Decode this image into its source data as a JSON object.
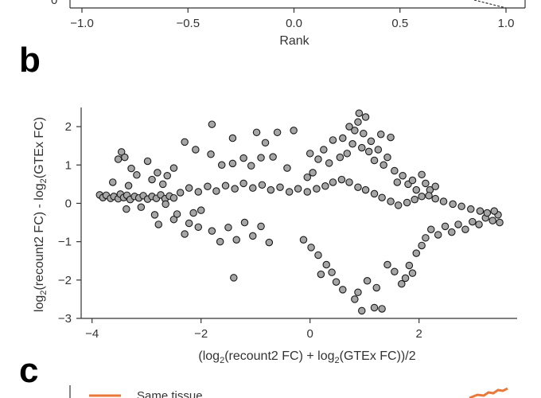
{
  "panels": {
    "a_fragment": {
      "xlabel": "Rank",
      "xticks": [
        "−1.0",
        "−0.5",
        "0.0",
        "0.5",
        "1.0"
      ],
      "ytick_partial": "0"
    },
    "b": {
      "label": "b"
    },
    "c_fragment": {
      "label": "c",
      "legend_text": "Same tissue",
      "orange": "#e8793a"
    }
  },
  "chart_data": {
    "type": "scatter",
    "title": "",
    "xlabel_parts": [
      "(log",
      "2",
      "(recount2 FC) + log",
      "2",
      "(GTEx FC))/2"
    ],
    "ylabel_parts": [
      "log",
      "2",
      "(recount2 FC) - log",
      "2",
      "(GTEx FC)"
    ],
    "xlim": [
      -4.2,
      3.8
    ],
    "ylim": [
      -3.0,
      2.5
    ],
    "xticks": [
      -4,
      -2,
      0,
      2
    ],
    "xtick_labels": [
      "−4",
      "−2",
      "0",
      "2"
    ],
    "yticks": [
      -3,
      -2,
      -1,
      0,
      1,
      2
    ],
    "ytick_labels": [
      "−3",
      "−2",
      "−1",
      "0",
      "1",
      "2"
    ],
    "grid": false,
    "marker_fill": "#a6a6a6",
    "marker_edge": "#1a1a1a",
    "points": [
      [
        -3.86,
        0.22
      ],
      [
        -3.8,
        0.15
      ],
      [
        -3.74,
        0.21
      ],
      [
        -3.66,
        0.13
      ],
      [
        -3.6,
        0.18
      ],
      [
        -3.52,
        0.12
      ],
      [
        -3.48,
        0.24
      ],
      [
        -3.42,
        0.15
      ],
      [
        -3.36,
        0.21
      ],
      [
        -3.3,
        0.1
      ],
      [
        -3.22,
        0.18
      ],
      [
        -3.14,
        0.14
      ],
      [
        -3.06,
        0.2
      ],
      [
        -2.98,
        0.11
      ],
      [
        -2.9,
        0.18
      ],
      [
        -2.82,
        0.13
      ],
      [
        -2.74,
        0.22
      ],
      [
        -2.66,
        0.12
      ],
      [
        -2.58,
        0.19
      ],
      [
        -2.5,
        0.14
      ],
      [
        -3.52,
        1.15
      ],
      [
        -3.46,
        1.34
      ],
      [
        -3.4,
        1.2
      ],
      [
        -3.28,
        0.91
      ],
      [
        -2.98,
        1.1
      ],
      [
        -2.8,
        0.8
      ],
      [
        -2.62,
        0.72
      ],
      [
        -2.5,
        0.92
      ],
      [
        -3.62,
        0.55
      ],
      [
        -3.33,
        0.46
      ],
      [
        -3.18,
        0.74
      ],
      [
        -2.9,
        0.62
      ],
      [
        -2.7,
        0.5
      ],
      [
        -3.37,
        -0.15
      ],
      [
        -3.1,
        -0.1
      ],
      [
        -2.85,
        -0.3
      ],
      [
        -2.65,
        -0.02
      ],
      [
        -2.78,
        -0.55
      ],
      [
        -2.5,
        -0.42
      ],
      [
        -2.44,
        -0.28
      ],
      [
        -2.22,
        -0.52
      ],
      [
        -2.3,
        -0.8
      ],
      [
        -2.05,
        -0.62
      ],
      [
        -2.0,
        -0.18
      ],
      [
        -2.14,
        -0.25
      ],
      [
        -1.8,
        -0.72
      ],
      [
        -1.65,
        -1.0
      ],
      [
        -1.5,
        -0.63
      ],
      [
        -1.35,
        -0.95
      ],
      [
        -1.2,
        -0.5
      ],
      [
        -1.05,
        -0.85
      ],
      [
        -0.9,
        -0.6
      ],
      [
        -0.75,
        -1.02
      ],
      [
        -1.4,
        -1.94
      ],
      [
        -1.62,
        1.0
      ],
      [
        -1.82,
        1.28
      ],
      [
        -1.42,
        1.04
      ],
      [
        -1.22,
        1.18
      ],
      [
        -1.08,
        0.98
      ],
      [
        -0.9,
        1.19
      ],
      [
        -0.68,
        1.21
      ],
      [
        -0.42,
        0.92
      ],
      [
        -0.3,
        1.9
      ],
      [
        -0.6,
        1.85
      ],
      [
        -0.98,
        1.85
      ],
      [
        -1.42,
        1.7
      ],
      [
        -1.8,
        2.06
      ],
      [
        -2.3,
        1.6
      ],
      [
        -2.1,
        1.4
      ],
      [
        -0.82,
        1.58
      ],
      [
        -0.05,
        0.68
      ],
      [
        0.05,
        0.8
      ],
      [
        0.0,
        1.3
      ],
      [
        0.15,
        1.15
      ],
      [
        0.25,
        1.4
      ],
      [
        0.35,
        1.05
      ],
      [
        0.42,
        1.65
      ],
      [
        0.55,
        1.2
      ],
      [
        0.6,
        1.7
      ],
      [
        0.68,
        1.3
      ],
      [
        0.72,
        2.0
      ],
      [
        0.78,
        1.55
      ],
      [
        0.82,
        1.9
      ],
      [
        0.88,
        2.12
      ],
      [
        0.9,
        2.35
      ],
      [
        0.95,
        1.45
      ],
      [
        0.98,
        1.82
      ],
      [
        1.02,
        2.25
      ],
      [
        1.08,
        1.35
      ],
      [
        1.12,
        1.62
      ],
      [
        1.18,
        1.12
      ],
      [
        1.25,
        1.4
      ],
      [
        1.3,
        1.8
      ],
      [
        1.35,
        1.0
      ],
      [
        1.42,
        1.2
      ],
      [
        1.48,
        1.72
      ],
      [
        1.55,
        0.85
      ],
      [
        1.6,
        0.55
      ],
      [
        1.7,
        0.72
      ],
      [
        1.8,
        0.5
      ],
      [
        1.88,
        0.6
      ],
      [
        1.95,
        0.35
      ],
      [
        2.05,
        0.75
      ],
      [
        2.12,
        0.52
      ],
      [
        2.2,
        0.35
      ],
      [
        2.3,
        0.44
      ],
      [
        1.32,
        -2.75
      ],
      [
        1.18,
        -2.72
      ],
      [
        0.95,
        -2.8
      ],
      [
        0.82,
        -2.5
      ],
      [
        0.48,
        -2.05
      ],
      [
        0.3,
        -1.6
      ],
      [
        0.15,
        -1.35
      ],
      [
        0.02,
        -1.15
      ],
      [
        -0.12,
        -0.95
      ],
      [
        0.2,
        -1.85
      ],
      [
        0.4,
        -1.8
      ],
      [
        0.6,
        -2.25
      ],
      [
        0.88,
        -2.32
      ],
      [
        1.05,
        -2.02
      ],
      [
        1.22,
        -2.2
      ],
      [
        1.42,
        -1.6
      ],
      [
        1.55,
        -1.78
      ],
      [
        1.68,
        -2.1
      ],
      [
        1.75,
        -1.95
      ],
      [
        1.82,
        -1.62
      ],
      [
        1.88,
        -1.82
      ],
      [
        1.95,
        -1.3
      ],
      [
        2.05,
        -1.1
      ],
      [
        2.12,
        -0.9
      ],
      [
        2.22,
        -0.68
      ],
      [
        2.35,
        -0.82
      ],
      [
        2.48,
        -0.6
      ],
      [
        2.6,
        -0.75
      ],
      [
        2.72,
        -0.55
      ],
      [
        2.85,
        -0.68
      ],
      [
        2.98,
        -0.48
      ],
      [
        3.1,
        -0.55
      ],
      [
        3.22,
        -0.38
      ],
      [
        3.35,
        -0.45
      ],
      [
        3.45,
        -0.3
      ],
      [
        3.48,
        -0.5
      ],
      [
        3.38,
        -0.2
      ],
      [
        3.25,
        -0.25
      ],
      [
        3.12,
        -0.2
      ],
      [
        2.95,
        -0.15
      ],
      [
        2.78,
        -0.08
      ],
      [
        2.62,
        -0.02
      ],
      [
        2.45,
        0.05
      ],
      [
        2.3,
        0.12
      ],
      [
        2.18,
        0.2
      ],
      [
        2.05,
        0.18
      ],
      [
        1.92,
        0.1
      ],
      [
        1.78,
        0.02
      ],
      [
        1.62,
        -0.05
      ],
      [
        1.48,
        0.05
      ],
      [
        1.32,
        0.15
      ],
      [
        1.18,
        0.25
      ],
      [
        1.02,
        0.35
      ],
      [
        0.88,
        0.42
      ],
      [
        0.72,
        0.55
      ],
      [
        0.58,
        0.62
      ],
      [
        0.42,
        0.55
      ],
      [
        0.28,
        0.45
      ],
      [
        0.12,
        0.38
      ],
      [
        -0.05,
        0.3
      ],
      [
        -0.22,
        0.38
      ],
      [
        -0.38,
        0.3
      ],
      [
        -0.55,
        0.42
      ],
      [
        -0.72,
        0.35
      ],
      [
        -0.88,
        0.48
      ],
      [
        -1.05,
        0.4
      ],
      [
        -1.22,
        0.52
      ],
      [
        -1.38,
        0.38
      ],
      [
        -1.55,
        0.46
      ],
      [
        -1.72,
        0.32
      ],
      [
        -1.88,
        0.44
      ],
      [
        -2.05,
        0.3
      ],
      [
        -2.22,
        0.4
      ],
      [
        -2.38,
        0.28
      ]
    ]
  }
}
